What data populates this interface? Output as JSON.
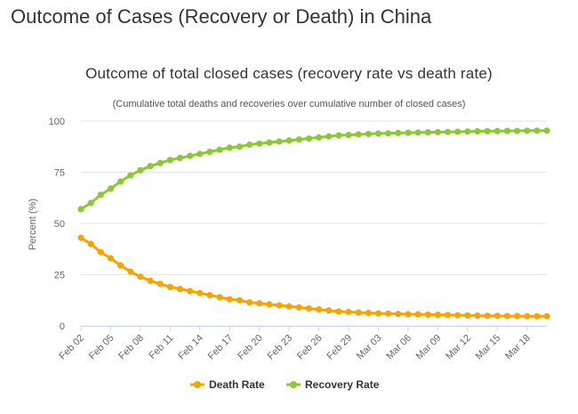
{
  "page": {
    "heading": "Outcome of Cases (Recovery or Death) in China"
  },
  "chart_data": {
    "type": "line",
    "title": "Outcome of total closed cases (recovery rate vs death rate)",
    "subtitle": "(Cumulative total deaths and recoveries over cumulative number of closed cases)",
    "ylabel": "Percent (%)",
    "xlabel": "",
    "ylim": [
      0,
      100
    ],
    "yticks": [
      0,
      25,
      50,
      75,
      100
    ],
    "x": [
      "Feb 02",
      "Feb 03",
      "Feb 04",
      "Feb 05",
      "Feb 06",
      "Feb 07",
      "Feb 08",
      "Feb 09",
      "Feb 10",
      "Feb 11",
      "Feb 12",
      "Feb 13",
      "Feb 14",
      "Feb 15",
      "Feb 16",
      "Feb 17",
      "Feb 18",
      "Feb 19",
      "Feb 20",
      "Feb 21",
      "Feb 22",
      "Feb 23",
      "Feb 24",
      "Feb 25",
      "Feb 26",
      "Feb 27",
      "Feb 28",
      "Feb 29",
      "Mar 01",
      "Mar 02",
      "Mar 03",
      "Mar 04",
      "Mar 05",
      "Mar 06",
      "Mar 07",
      "Mar 08",
      "Mar 09",
      "Mar 10",
      "Mar 11",
      "Mar 12",
      "Mar 13",
      "Mar 14",
      "Mar 15",
      "Mar 16",
      "Mar 17",
      "Mar 18",
      "Mar 19",
      "Mar 20"
    ],
    "xtick_labels": [
      "Feb 02",
      "Feb 05",
      "Feb 08",
      "Feb 11",
      "Feb 14",
      "Feb 17",
      "Feb 20",
      "Feb 23",
      "Feb 26",
      "Feb 29",
      "Mar 03",
      "Mar 06",
      "Mar 09",
      "Mar 12",
      "Mar 15",
      "Mar 18"
    ],
    "grid": "horizontal",
    "legend_position": "bottom",
    "series": [
      {
        "name": "Death Rate",
        "color": "#f7a400",
        "values": [
          43,
          40,
          36,
          33,
          29.5,
          26.5,
          24,
          22,
          20.5,
          19,
          18,
          17,
          16,
          15,
          14,
          13,
          12.5,
          11.5,
          11,
          10.5,
          10,
          9.5,
          9,
          8.5,
          8,
          7.5,
          7,
          6.8,
          6.5,
          6.3,
          6.1,
          6,
          5.8,
          5.7,
          5.6,
          5.5,
          5.4,
          5.3,
          5.2,
          5.1,
          5,
          4.9,
          4.9,
          4.8,
          4.8,
          4.7,
          4.7,
          4.7
        ]
      },
      {
        "name": "Recovery Rate",
        "color": "#8bc834",
        "values": [
          57,
          60,
          64,
          67,
          70.5,
          73.5,
          76,
          78,
          79.5,
          81,
          82,
          83,
          84,
          85,
          86,
          87,
          87.5,
          88.5,
          89,
          89.5,
          90,
          90.5,
          91,
          91.5,
          92,
          92.5,
          93,
          93.2,
          93.5,
          93.7,
          93.9,
          94,
          94.2,
          94.3,
          94.4,
          94.5,
          94.6,
          94.7,
          94.8,
          94.9,
          95,
          95.1,
          95.1,
          95.2,
          95.2,
          95.3,
          95.3,
          95.3
        ]
      }
    ]
  }
}
